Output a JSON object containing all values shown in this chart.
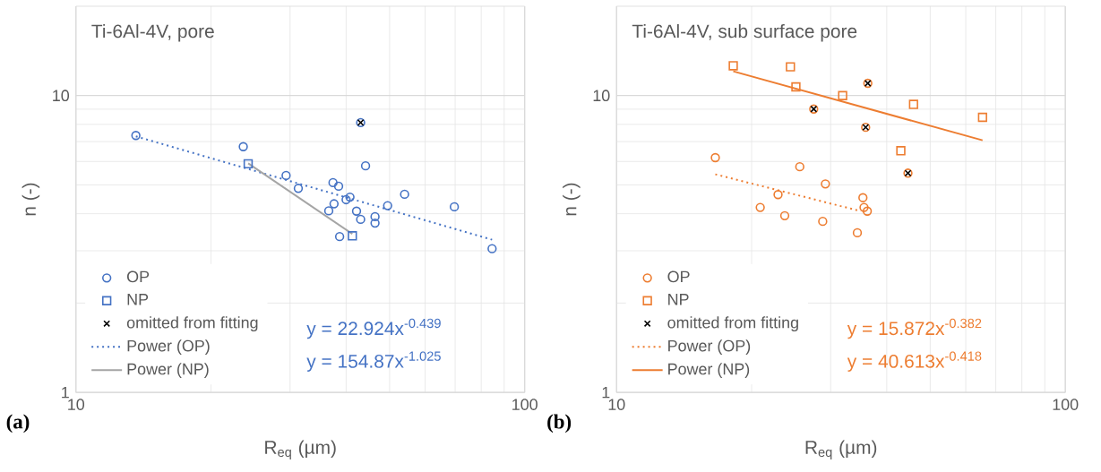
{
  "chart_data": [
    {
      "type": "scatter",
      "title": "Ti-6Al-4V, pore",
      "xlabel": "R$_{eq}$ (µm)",
      "ylabel": "n (-)",
      "log": "xy",
      "grid": true,
      "legend": "bottom left",
      "xlim": [
        10,
        100
      ],
      "ylim": [
        1,
        20
      ],
      "xticks": [
        10,
        100
      ],
      "yticks": [
        1,
        10
      ],
      "annotations": [
        "(a)",
        "y = 22.924x$^{-0.439}$",
        "y = 154.87x$^{-1.025}$"
      ],
      "series": [
        {
          "name": "OP",
          "marker": "circle",
          "color": "#4472c4",
          "x": [
            13.6,
            23.6,
            29.4,
            31.3,
            37.4,
            38.5,
            40.8,
            40.0,
            37.6,
            36.6,
            42.2,
            43.1,
            44.2,
            46.4,
            46.4,
            49.5,
            54.0,
            38.7,
            69.7,
            84.6,
            43.1
          ],
          "values": [
            7.34,
            6.73,
            5.38,
            4.87,
            5.09,
            4.95,
            4.55,
            4.46,
            4.32,
            4.09,
            4.08,
            3.83,
            5.8,
            3.91,
            3.72,
            4.26,
            4.65,
            3.35,
            4.22,
            3.05,
            8.11
          ]
        },
        {
          "name": "NP",
          "marker": "square",
          "color": "#4472c4",
          "x": [
            24.2,
            41.3
          ],
          "values": [
            5.89,
            3.37
          ]
        },
        {
          "name": "omitted from fitting",
          "marker": "cross",
          "color": "#000000",
          "x": [
            43.1
          ],
          "values": [
            8.11
          ]
        },
        {
          "name": "Power (OP)",
          "type": "line",
          "line_style": "dotted",
          "color": "#4472c4",
          "x": [
            13.6,
            84.6
          ],
          "values": [
            7.29,
            3.27
          ]
        },
        {
          "name": "Power (NP)",
          "type": "line",
          "line_style": "solid",
          "color": "#a5a5a5",
          "x": [
            24.2,
            41.3
          ],
          "values": [
            5.91,
            3.42
          ]
        }
      ]
    },
    {
      "type": "scatter",
      "title": "Ti-6Al-4V, sub surface pore",
      "xlabel": "R$_{eq}$ (µm)",
      "ylabel": "n (-)",
      "log": "xy",
      "grid": true,
      "legend": "bottom left",
      "xlim": [
        10,
        100
      ],
      "ylim": [
        1,
        20
      ],
      "xticks": [
        10,
        100
      ],
      "yticks": [
        1,
        10
      ],
      "annotations": [
        "(b)",
        "y = 15.872x$^{-0.382}$",
        "y = 40.613x$^{-0.418}$"
      ],
      "series": [
        {
          "name": "OP",
          "marker": "circle",
          "color": "#ed7d31",
          "x": [
            16.6,
            25.6,
            29.2,
            22.9,
            35.4,
            35.6,
            36.2,
            20.9,
            23.7,
            28.8,
            34.4,
            36.3,
            27.5,
            35.9,
            44.6
          ],
          "values": [
            6.18,
            5.76,
            5.04,
            4.64,
            4.53,
            4.2,
            4.08,
            4.2,
            3.94,
            3.77,
            3.45,
            11.0,
            9.01,
            7.82,
            5.48
          ]
        },
        {
          "name": "NP",
          "marker": "square",
          "color": "#ed7d31",
          "x": [
            18.2,
            24.4,
            25.1,
            31.9,
            45.9,
            43.0,
            65.4
          ],
          "values": [
            12.6,
            12.5,
            10.7,
            10.0,
            9.34,
            6.52,
            8.45
          ]
        },
        {
          "name": "omitted from fitting",
          "marker": "cross",
          "color": "#000000",
          "x": [
            36.3,
            27.5,
            35.9,
            44.6
          ],
          "values": [
            11.0,
            9.01,
            7.82,
            5.48
          ]
        },
        {
          "name": "Power (OP)",
          "type": "line",
          "line_style": "dotted",
          "color": "#ed7d31",
          "x": [
            16.6,
            35.0
          ],
          "values": [
            5.43,
            4.08
          ]
        },
        {
          "name": "Power (NP)",
          "type": "line",
          "line_style": "solid",
          "color": "#ed7d31",
          "x": [
            18.2,
            65.4
          ],
          "values": [
            12.07,
            7.07
          ]
        }
      ]
    }
  ]
}
